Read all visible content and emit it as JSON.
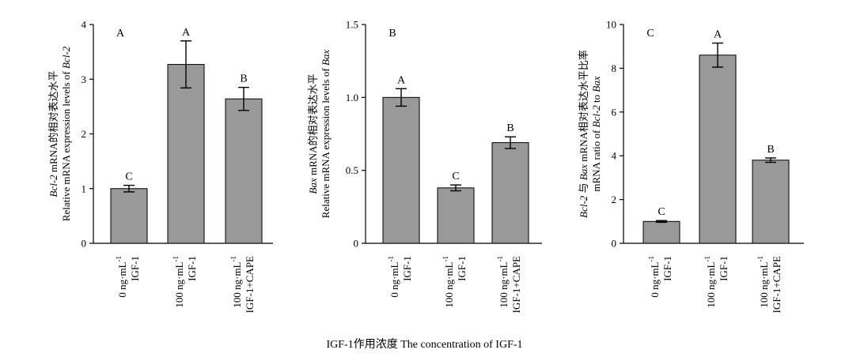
{
  "caption": "IGF-1作用浓度 The concentration of IGF-1",
  "colors": {
    "bar": "#999999",
    "stroke": "#000000",
    "background": "#ffffff"
  },
  "chart_data": [
    {
      "type": "bar",
      "panel_letter": "A",
      "ylabel_line1": [
        "Bcl-2",
        " mRNA的相对表达水平"
      ],
      "ylabel_line2": [
        "Relative mRNA expression levels of ",
        "Bcl-2"
      ],
      "ylim": [
        0,
        4
      ],
      "yticks": [
        0,
        1,
        2,
        3,
        4
      ],
      "ytick_labels": [
        "0",
        "1",
        "2",
        "3",
        "4"
      ],
      "categories": [
        {
          "line1": "0 ng·mL",
          "sup": "-1",
          "line2": "IGF-1"
        },
        {
          "line1": "100 ng·mL",
          "sup": "-1",
          "line2": "IGF-1"
        },
        {
          "line1": "100 ng·mL",
          "sup": "-1",
          "line2": "IGF-1+CAPE"
        }
      ],
      "values": [
        1.0,
        3.27,
        2.64
      ],
      "errors": [
        0.06,
        0.43,
        0.21
      ],
      "sig_letters": [
        "C",
        "A",
        "B"
      ]
    },
    {
      "type": "bar",
      "panel_letter": "B",
      "ylabel_line1": [
        "Bax",
        " mRNA的相对表达水平"
      ],
      "ylabel_line2": [
        "Relative mRNA expression levels of ",
        "Bax"
      ],
      "ylim": [
        0,
        1.5
      ],
      "yticks": [
        0,
        0.5,
        1.0,
        1.5
      ],
      "ytick_labels": [
        "0",
        "0.5",
        "1.0",
        "1.5"
      ],
      "categories": [
        {
          "line1": "0 ng·mL",
          "sup": "-1",
          "line2": "IGF-1"
        },
        {
          "line1": "100 ng·mL",
          "sup": "-1",
          "line2": "IGF-1"
        },
        {
          "line1": "100 ng·mL",
          "sup": "-1",
          "line2": "IGF-1+CAPE"
        }
      ],
      "values": [
        1.0,
        0.38,
        0.69
      ],
      "errors": [
        0.06,
        0.02,
        0.04
      ],
      "sig_letters": [
        "A",
        "C",
        "B"
      ]
    },
    {
      "type": "bar",
      "panel_letter": "C",
      "ylabel_line1": [
        "Bcl-2",
        " 与 ",
        "Bax",
        " mRNA相对表达水平比率"
      ],
      "ylabel_line2": [
        "mRNA ratio of ",
        "Bcl-2",
        " to ",
        "Bax"
      ],
      "ylim": [
        0,
        10
      ],
      "yticks": [
        0,
        2,
        4,
        6,
        8,
        10
      ],
      "ytick_labels": [
        "0",
        "2",
        "4",
        "6",
        "8",
        "10"
      ],
      "categories": [
        {
          "line1": "0 ng·mL",
          "sup": "-1",
          "line2": "IGF-1"
        },
        {
          "line1": "100 ng·mL",
          "sup": "-1",
          "line2": "IGF-1"
        },
        {
          "line1": "100 ng·mL",
          "sup": "-1",
          "line2": "IGF-1+CAPE"
        }
      ],
      "values": [
        1.0,
        8.6,
        3.8
      ],
      "errors": [
        0.04,
        0.55,
        0.1
      ],
      "sig_letters": [
        "C",
        "A",
        "B"
      ]
    }
  ]
}
